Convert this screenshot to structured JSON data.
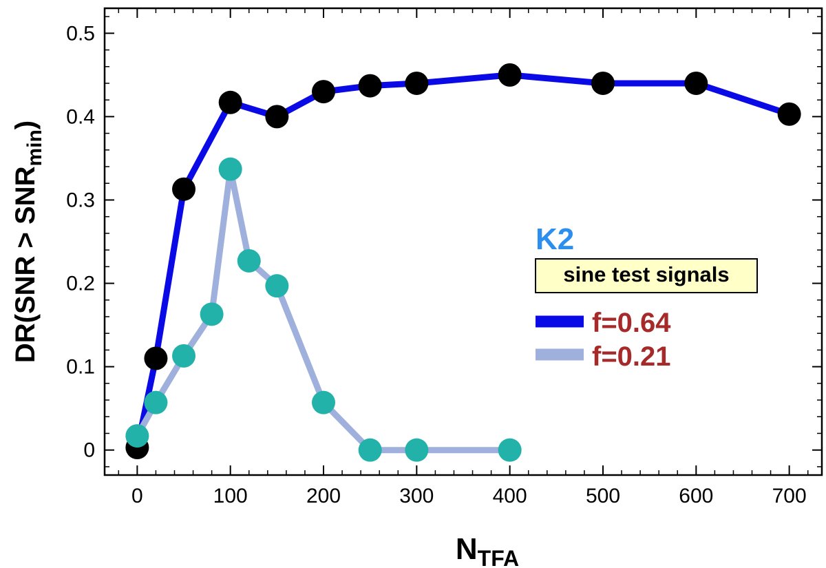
{
  "chart_data": {
    "type": "line",
    "title": "",
    "xlabel": {
      "main": "N",
      "sub": "TFA"
    },
    "ylabel": {
      "prefix": "DR(SNR > SNR",
      "sub": "min",
      "suffix": ")"
    },
    "xlim": [
      -35,
      735
    ],
    "ylim": [
      -0.03,
      0.53
    ],
    "xticks": [
      0,
      100,
      200,
      300,
      400,
      500,
      600,
      700
    ],
    "xtick_labels": [
      "0",
      "100",
      "200",
      "300",
      "400",
      "500",
      "600",
      "700"
    ],
    "yticks": [
      0,
      0.1,
      0.2,
      0.3,
      0.4,
      0.5
    ],
    "ytick_labels": [
      "0",
      "0.1",
      "0.2",
      "0.3",
      "0.4",
      "0.5"
    ],
    "series": [
      {
        "name": "f=0.64",
        "line_color": "#0a0ae6",
        "marker_color": "#000000",
        "x": [
          0,
          20,
          50,
          100,
          150,
          200,
          250,
          300,
          400,
          500,
          600,
          700
        ],
        "y": [
          0.003,
          0.11,
          0.313,
          0.417,
          0.4,
          0.43,
          0.437,
          0.44,
          0.45,
          0.44,
          0.44,
          0.403
        ]
      },
      {
        "name": "f=0.21",
        "line_color": "#9fb0dc",
        "marker_color": "#23b2aa",
        "x": [
          0,
          20,
          50,
          80,
          100,
          120,
          150,
          200,
          250,
          300,
          400
        ],
        "y": [
          0.017,
          0.057,
          0.113,
          0.163,
          0.337,
          0.227,
          0.197,
          0.057,
          0.0,
          0.0,
          0.0
        ]
      }
    ],
    "annotation": {
      "text": "K2",
      "color": "#2c8ff0"
    },
    "annotation_box": {
      "text": "sine test signals",
      "fill": "#ffffc8"
    },
    "legend": {
      "entries": [
        "f=0.64",
        "f=0.21"
      ],
      "text_color": "#a62a2a",
      "position": "right"
    },
    "grid": false
  }
}
